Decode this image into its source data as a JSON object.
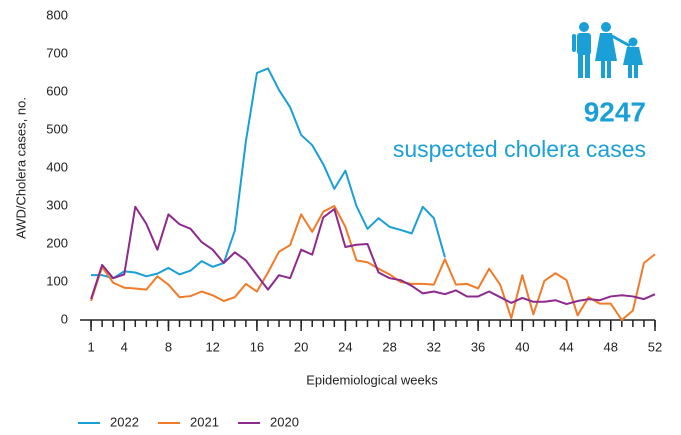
{
  "chart_data": {
    "type": "line",
    "y_label": "AWD/Cholera cases, no.",
    "x_label": "Epidemiological weeks",
    "annotation_value": "9247",
    "annotation_text": "suspected cholera cases",
    "x": [
      1,
      2,
      3,
      4,
      5,
      6,
      7,
      8,
      9,
      10,
      11,
      12,
      13,
      14,
      15,
      16,
      17,
      18,
      19,
      20,
      21,
      22,
      23,
      24,
      25,
      26,
      27,
      28,
      29,
      30,
      31,
      32,
      33,
      34,
      35,
      36,
      37,
      38,
      39,
      40,
      41,
      42,
      43,
      44,
      45,
      46,
      47,
      48,
      49,
      50,
      51,
      52
    ],
    "xlim": [
      0,
      52
    ],
    "xticks": [
      1,
      4,
      8,
      12,
      16,
      20,
      24,
      28,
      32,
      36,
      40,
      44,
      48,
      52
    ],
    "ylim": [
      0,
      800
    ],
    "yticks": [
      0,
      100,
      200,
      300,
      400,
      500,
      600,
      700,
      800
    ],
    "grid": false,
    "series": [
      {
        "name": "2022",
        "color": "#1a9fd6",
        "values": [
          118,
          118,
          110,
          128,
          125,
          115,
          122,
          137,
          120,
          130,
          155,
          140,
          150,
          235,
          470,
          650,
          662,
          605,
          560,
          487,
          460,
          410,
          345,
          393,
          300,
          240,
          268,
          245,
          237,
          228,
          298,
          268,
          165,
          null,
          null,
          null,
          null,
          null,
          null,
          null,
          null,
          null,
          null,
          null,
          null,
          null,
          null,
          null,
          null,
          null,
          null,
          null
        ]
      },
      {
        "name": "2021",
        "color": "#f07c2a",
        "values": [
          50,
          140,
          98,
          85,
          83,
          80,
          115,
          93,
          60,
          63,
          75,
          65,
          50,
          60,
          95,
          75,
          125,
          180,
          197,
          278,
          232,
          285,
          300,
          245,
          157,
          152,
          135,
          120,
          100,
          95,
          95,
          93,
          160,
          93,
          95,
          83,
          135,
          93,
          5,
          118,
          15,
          103,
          123,
          105,
          12,
          60,
          43,
          43,
          0,
          25,
          150,
          173
        ]
      },
      {
        "name": "2020",
        "color": "#8e2a8e",
        "values": [
          55,
          145,
          110,
          120,
          298,
          253,
          185,
          278,
          252,
          240,
          205,
          185,
          150,
          178,
          157,
          118,
          80,
          118,
          110,
          185,
          172,
          270,
          292,
          192,
          198,
          200,
          125,
          110,
          105,
          90,
          70,
          75,
          68,
          78,
          62,
          62,
          75,
          60,
          45,
          58,
          48,
          48,
          52,
          42,
          50,
          55,
          52,
          62,
          65,
          62,
          55,
          68
        ]
      }
    ]
  }
}
